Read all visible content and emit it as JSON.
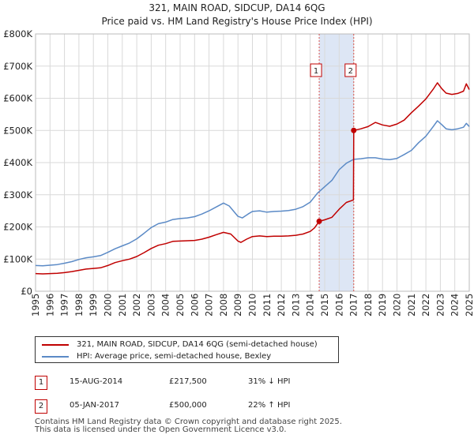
{
  "chart_data": {
    "type": "line",
    "title": "321, MAIN ROAD, SIDCUP, DA14 6QG",
    "subtitle": "Price paid vs. HM Land Registry's House Price Index (HPI)",
    "ylim": [
      0,
      800000
    ],
    "xlim": [
      1995.0,
      2025.0
    ],
    "y_ticks": [
      0,
      100000,
      200000,
      300000,
      400000,
      500000,
      600000,
      700000,
      800000
    ],
    "y_tick_labels": [
      "£0",
      "£100K",
      "£200K",
      "£300K",
      "£400K",
      "£500K",
      "£600K",
      "£700K",
      "£800K"
    ],
    "x_ticks": [
      1995,
      1996,
      1997,
      1998,
      1999,
      2000,
      2001,
      2002,
      2003,
      2004,
      2005,
      2006,
      2007,
      2008,
      2009,
      2010,
      2011,
      2012,
      2013,
      2014,
      2015,
      2016,
      2017,
      2018,
      2019,
      2020,
      2021,
      2022,
      2023,
      2024,
      2025
    ],
    "x_tick_labels": [
      "1995",
      "1996",
      "1997",
      "1998",
      "1999",
      "2000",
      "2001",
      "2002",
      "2003",
      "2004",
      "2005",
      "2006",
      "2007",
      "2008",
      "2009",
      "2010",
      "2011",
      "2012",
      "2013",
      "2014",
      "2015",
      "2016",
      "2017",
      "2018",
      "2019",
      "2020",
      "2021",
      "2022",
      "2023",
      "2024",
      "2025"
    ],
    "grid": true,
    "series": [
      {
        "name": "321, MAIN ROAD, SIDCUP, DA14 6QG (semi-detached house)",
        "color": "#c00000",
        "points": [
          [
            1995.0,
            55000
          ],
          [
            1995.5,
            54000
          ],
          [
            1996.0,
            55000
          ],
          [
            1996.5,
            56000
          ],
          [
            1997.0,
            58000
          ],
          [
            1997.5,
            61000
          ],
          [
            1998.0,
            65000
          ],
          [
            1998.5,
            69000
          ],
          [
            1999.0,
            71000
          ],
          [
            1999.5,
            73000
          ],
          [
            2000.0,
            80000
          ],
          [
            2000.5,
            89000
          ],
          [
            2001.0,
            95000
          ],
          [
            2001.5,
            100000
          ],
          [
            2002.0,
            108000
          ],
          [
            2002.5,
            120000
          ],
          [
            2003.0,
            133000
          ],
          [
            2003.5,
            143000
          ],
          [
            2004.0,
            148000
          ],
          [
            2004.5,
            155000
          ],
          [
            2005.0,
            156000
          ],
          [
            2005.5,
            157000
          ],
          [
            2006.0,
            158000
          ],
          [
            2006.5,
            162000
          ],
          [
            2007.0,
            168000
          ],
          [
            2007.5,
            176000
          ],
          [
            2008.0,
            183000
          ],
          [
            2008.5,
            178000
          ],
          [
            2009.0,
            156000
          ],
          [
            2009.2,
            152000
          ],
          [
            2009.6,
            162000
          ],
          [
            2010.0,
            170000
          ],
          [
            2010.5,
            172000
          ],
          [
            2011.0,
            170000
          ],
          [
            2011.5,
            171000
          ],
          [
            2012.0,
            171000
          ],
          [
            2012.5,
            172000
          ],
          [
            2013.0,
            174000
          ],
          [
            2013.5,
            178000
          ],
          [
            2014.0,
            186000
          ],
          [
            2014.3,
            197000
          ],
          [
            2014.62,
            217500
          ],
          [
            2015.0,
            222000
          ],
          [
            2015.5,
            230000
          ],
          [
            2016.0,
            255000
          ],
          [
            2016.5,
            276000
          ],
          [
            2016.99,
            284000
          ],
          [
            2017.01,
            500000
          ],
          [
            2017.5,
            505000
          ],
          [
            2018.0,
            512000
          ],
          [
            2018.5,
            525000
          ],
          [
            2019.0,
            517000
          ],
          [
            2019.5,
            513000
          ],
          [
            2020.0,
            520000
          ],
          [
            2020.5,
            532000
          ],
          [
            2021.0,
            555000
          ],
          [
            2021.5,
            576000
          ],
          [
            2022.0,
            598000
          ],
          [
            2022.5,
            628000
          ],
          [
            2022.8,
            648000
          ],
          [
            2023.1,
            630000
          ],
          [
            2023.4,
            616000
          ],
          [
            2023.8,
            612000
          ],
          [
            2024.2,
            615000
          ],
          [
            2024.6,
            622000
          ],
          [
            2024.8,
            645000
          ],
          [
            2025.0,
            627000
          ]
        ]
      },
      {
        "name": "HPI: Average price, semi-detached house, Bexley",
        "color": "#5b8ac6",
        "points": [
          [
            1995.0,
            80000
          ],
          [
            1995.5,
            79000
          ],
          [
            1996.0,
            81000
          ],
          [
            1996.5,
            83000
          ],
          [
            1997.0,
            87000
          ],
          [
            1997.5,
            92000
          ],
          [
            1998.0,
            99000
          ],
          [
            1998.5,
            104000
          ],
          [
            1999.0,
            107000
          ],
          [
            1999.5,
            111000
          ],
          [
            2000.0,
            121000
          ],
          [
            2000.5,
            132000
          ],
          [
            2001.0,
            141000
          ],
          [
            2001.5,
            150000
          ],
          [
            2002.0,
            163000
          ],
          [
            2002.5,
            180000
          ],
          [
            2003.0,
            198000
          ],
          [
            2003.5,
            210000
          ],
          [
            2004.0,
            215000
          ],
          [
            2004.5,
            223000
          ],
          [
            2005.0,
            226000
          ],
          [
            2005.5,
            228000
          ],
          [
            2006.0,
            232000
          ],
          [
            2006.5,
            240000
          ],
          [
            2007.0,
            250000
          ],
          [
            2007.5,
            262000
          ],
          [
            2008.0,
            274000
          ],
          [
            2008.4,
            265000
          ],
          [
            2009.0,
            233000
          ],
          [
            2009.3,
            228000
          ],
          [
            2009.7,
            240000
          ],
          [
            2010.0,
            248000
          ],
          [
            2010.5,
            250000
          ],
          [
            2011.0,
            246000
          ],
          [
            2011.5,
            248000
          ],
          [
            2012.0,
            249000
          ],
          [
            2012.5,
            251000
          ],
          [
            2013.0,
            255000
          ],
          [
            2013.5,
            263000
          ],
          [
            2014.0,
            277000
          ],
          [
            2014.5,
            305000
          ],
          [
            2015.0,
            325000
          ],
          [
            2015.5,
            345000
          ],
          [
            2016.0,
            378000
          ],
          [
            2016.5,
            398000
          ],
          [
            2017.0,
            410000
          ],
          [
            2017.5,
            412000
          ],
          [
            2018.0,
            415000
          ],
          [
            2018.5,
            415000
          ],
          [
            2019.0,
            411000
          ],
          [
            2019.5,
            409000
          ],
          [
            2020.0,
            413000
          ],
          [
            2020.5,
            425000
          ],
          [
            2021.0,
            438000
          ],
          [
            2021.5,
            462000
          ],
          [
            2022.0,
            482000
          ],
          [
            2022.5,
            512000
          ],
          [
            2022.8,
            530000
          ],
          [
            2023.1,
            518000
          ],
          [
            2023.4,
            505000
          ],
          [
            2023.8,
            502000
          ],
          [
            2024.2,
            505000
          ],
          [
            2024.6,
            510000
          ],
          [
            2024.8,
            522000
          ],
          [
            2025.0,
            512000
          ]
        ]
      }
    ],
    "purchase_markers": [
      {
        "id": "1",
        "x": 2014.62,
        "y": 217500
      },
      {
        "id": "2",
        "x": 2017.01,
        "y": 500000
      }
    ],
    "highlight_span": [
      2014.62,
      2017.01
    ]
  },
  "legend": {
    "property_label": "321, MAIN ROAD, SIDCUP, DA14 6QG (semi-detached house)",
    "hpi_label": "HPI: Average price, semi-detached house, Bexley",
    "property_color": "#c00000",
    "hpi_color": "#5b8ac6"
  },
  "transactions": [
    {
      "id": "1",
      "date": "15-AUG-2014",
      "price": "£217,500",
      "hpi": "31% ↓ HPI"
    },
    {
      "id": "2",
      "date": "05-JAN-2017",
      "price": "£500,000",
      "hpi": "22% ↑ HPI"
    }
  ],
  "footer": {
    "line1": "Contains HM Land Registry data © Crown copyright and database right 2025.",
    "line2": "This data is licensed under the Open Government Licence v3.0."
  }
}
